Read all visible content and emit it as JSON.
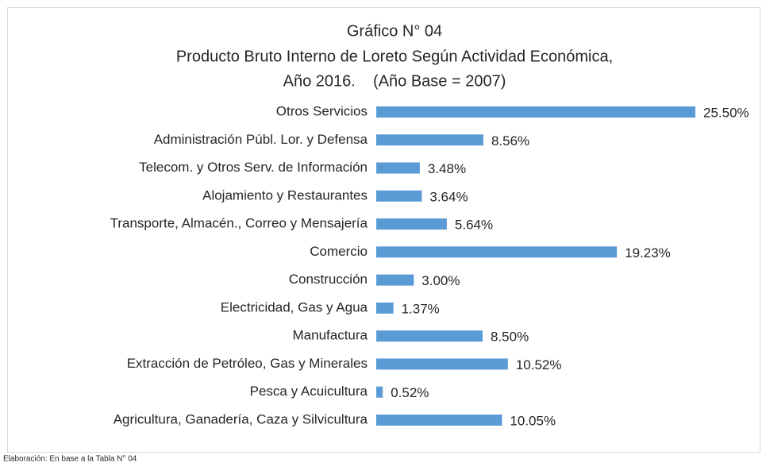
{
  "chart_data": {
    "type": "bar",
    "orientation": "horizontal",
    "title": [
      "Gráfico N° 04",
      "Producto Bruto Interno de Loreto Según Actividad Económica,",
      "Año 2016.    (Año Base = 2007)"
    ],
    "categories": [
      "Otros Servicios",
      "Administración Públ. Lor. y Defensa",
      "Telecom. y Otros Serv. de Información",
      "Alojamiento y Restaurantes",
      "Transporte, Almacén., Correo y Mensajería",
      "Comercio",
      "Construcción",
      "Electricidad, Gas y Agua",
      "Manufactura",
      "Extracción de Petróleo, Gas y Minerales",
      "Pesca y Acuicultura",
      "Agricultura, Ganadería, Caza y Silvicultura"
    ],
    "values": [
      25.5,
      8.56,
      3.48,
      3.64,
      5.64,
      19.23,
      3.0,
      1.37,
      8.5,
      10.52,
      0.52,
      10.05
    ],
    "value_labels": [
      "25.50%",
      "8.56%",
      "3.48%",
      "3.64%",
      "5.64%",
      "19.23%",
      "3.00%",
      "1.37%",
      "8.50%",
      "10.52%",
      "0.52%",
      "10.05%"
    ],
    "color": "#5b9bd5",
    "source": "Elaboración: En base a la Tabla N° 04"
  }
}
